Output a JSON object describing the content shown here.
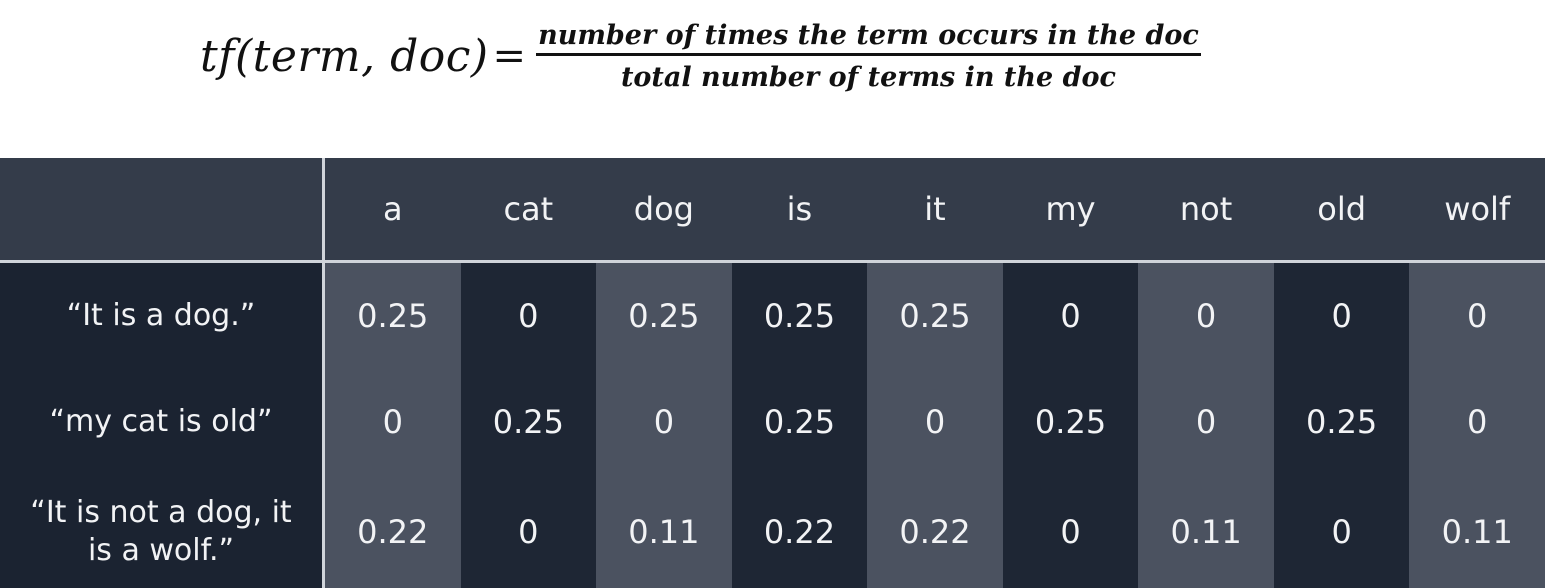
{
  "formula": {
    "lhs": "tf(term, doc)",
    "equals": "=",
    "numerator": "number of times the term occurs in the doc",
    "denominator": "total number of terms in the doc"
  },
  "table": {
    "columns": [
      "a",
      "cat",
      "dog",
      "is",
      "it",
      "my",
      "not",
      "old",
      "wolf"
    ],
    "rows": [
      {
        "label": "“It is a dog.”",
        "values": [
          "0.25",
          "0",
          "0.25",
          "0.25",
          "0.25",
          "0",
          "0",
          "0",
          "0"
        ]
      },
      {
        "label": "“my cat is old”",
        "values": [
          "0",
          "0.25",
          "0",
          "0.25",
          "0",
          "0.25",
          "0",
          "0.25",
          "0"
        ]
      },
      {
        "label": "“It is not a dog, it is a wolf.”",
        "values": [
          "0.22",
          "0",
          "0.11",
          "0.22",
          "0.22",
          "0",
          "0.11",
          "0",
          "0.11"
        ]
      }
    ]
  },
  "colors": {
    "header_bg": "#343c4a",
    "label_bg": "#1b2331",
    "light_column": "#4b5260",
    "dark_column": "#1e2634",
    "divider": "#d0d4da",
    "text": "#f2f3f5"
  }
}
